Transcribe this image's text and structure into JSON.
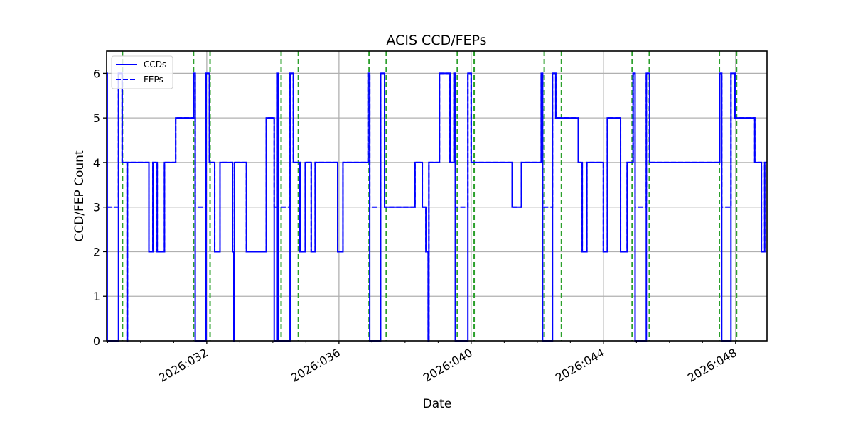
{
  "chart_data": {
    "type": "line",
    "title": "ACIS CCD/FEPs",
    "xlabel": "Date",
    "ylabel": "CCD/FEP Count",
    "xlim_doy": [
      28.97,
      48.95
    ],
    "ylim": [
      0,
      6.5
    ],
    "grid": true,
    "legend_position": "upper left",
    "x_ticks": [
      {
        "doy": 32,
        "label": "2026:032"
      },
      {
        "doy": 36,
        "label": "2026:036"
      },
      {
        "doy": 40,
        "label": "2026:040"
      },
      {
        "doy": 44,
        "label": "2026:044"
      },
      {
        "doy": 48,
        "label": "2026:048"
      }
    ],
    "x_minor_ticks_doy": [
      29,
      30,
      31,
      33,
      34,
      35,
      37,
      38,
      39,
      41,
      42,
      43,
      45,
      46,
      47
    ],
    "y_ticks": [
      0,
      1,
      2,
      3,
      4,
      5,
      6
    ],
    "colors": {
      "ccds": "#0000ff",
      "feps": "#0000ff",
      "markers": "#2ca02c",
      "grid": "#b0b0b0"
    },
    "legend": [
      {
        "label": "CCDs",
        "style": "solid"
      },
      {
        "label": "FEPs",
        "style": "dashed"
      }
    ],
    "series": [
      {
        "name": "CCDs",
        "style": "step",
        "points": [
          [
            28.97,
            6
          ],
          [
            28.99,
            0
          ],
          [
            29.33,
            6
          ],
          [
            29.44,
            4
          ],
          [
            29.59,
            0
          ],
          [
            29.6,
            4
          ],
          [
            30.25,
            2
          ],
          [
            30.37,
            4
          ],
          [
            30.5,
            2
          ],
          [
            30.72,
            4
          ],
          [
            31.06,
            5
          ],
          [
            31.6,
            6
          ],
          [
            31.65,
            0
          ],
          [
            31.98,
            6
          ],
          [
            32.08,
            4
          ],
          [
            32.24,
            2
          ],
          [
            32.4,
            4
          ],
          [
            32.78,
            2
          ],
          [
            32.82,
            0
          ],
          [
            32.84,
            4
          ],
          [
            33.2,
            2
          ],
          [
            33.8,
            5
          ],
          [
            34.04,
            0
          ],
          [
            34.12,
            6
          ],
          [
            34.16,
            0
          ],
          [
            34.52,
            6
          ],
          [
            34.62,
            4
          ],
          [
            34.82,
            2
          ],
          [
            34.98,
            4
          ],
          [
            35.16,
            2
          ],
          [
            35.28,
            4
          ],
          [
            35.96,
            2
          ],
          [
            36.12,
            4
          ],
          [
            36.88,
            6
          ],
          [
            36.93,
            0
          ],
          [
            37.26,
            6
          ],
          [
            37.38,
            3
          ],
          [
            38.3,
            4
          ],
          [
            38.52,
            3
          ],
          [
            38.63,
            2
          ],
          [
            38.7,
            0
          ],
          [
            38.72,
            4
          ],
          [
            39.04,
            6
          ],
          [
            39.36,
            4
          ],
          [
            39.48,
            6
          ],
          [
            39.52,
            0
          ],
          [
            39.9,
            6
          ],
          [
            40.0,
            4
          ],
          [
            41.24,
            3
          ],
          [
            41.52,
            4
          ],
          [
            42.12,
            6
          ],
          [
            42.16,
            0
          ],
          [
            42.46,
            6
          ],
          [
            42.56,
            5
          ],
          [
            43.24,
            4
          ],
          [
            43.36,
            2
          ],
          [
            43.5,
            4
          ],
          [
            44.0,
            2
          ],
          [
            44.12,
            5
          ],
          [
            44.52,
            2
          ],
          [
            44.72,
            4
          ],
          [
            44.9,
            6
          ],
          [
            44.96,
            0
          ],
          [
            45.3,
            6
          ],
          [
            45.4,
            4
          ],
          [
            47.52,
            6
          ],
          [
            47.58,
            0
          ],
          [
            47.86,
            6
          ],
          [
            47.98,
            5
          ],
          [
            48.58,
            4
          ],
          [
            48.78,
            2
          ],
          [
            48.88,
            4
          ],
          [
            48.95,
            4
          ]
        ]
      },
      {
        "name": "FEPs",
        "style": "step-dashed",
        "points": [
          [
            28.97,
            3
          ],
          [
            29.25,
            3
          ],
          [
            29.33,
            6
          ],
          [
            29.44,
            4
          ],
          [
            29.59,
            0
          ],
          [
            29.6,
            4
          ],
          [
            30.25,
            2
          ],
          [
            30.37,
            4
          ],
          [
            30.5,
            2
          ],
          [
            30.72,
            4
          ],
          [
            31.06,
            5
          ],
          [
            31.6,
            6
          ],
          [
            31.65,
            3
          ],
          [
            31.88,
            3
          ],
          [
            31.98,
            6
          ],
          [
            32.08,
            4
          ],
          [
            32.24,
            2
          ],
          [
            32.4,
            4
          ],
          [
            32.78,
            2
          ],
          [
            32.82,
            0
          ],
          [
            32.84,
            4
          ],
          [
            33.2,
            2
          ],
          [
            33.8,
            5
          ],
          [
            34.04,
            3
          ],
          [
            34.12,
            6
          ],
          [
            34.16,
            3
          ],
          [
            34.52,
            6
          ],
          [
            34.62,
            4
          ],
          [
            34.82,
            2
          ],
          [
            34.98,
            4
          ],
          [
            35.16,
            2
          ],
          [
            35.28,
            4
          ],
          [
            35.96,
            2
          ],
          [
            36.12,
            4
          ],
          [
            36.88,
            6
          ],
          [
            36.93,
            3
          ],
          [
            37.26,
            6
          ],
          [
            37.38,
            3
          ],
          [
            38.3,
            4
          ],
          [
            38.52,
            3
          ],
          [
            38.63,
            2
          ],
          [
            38.7,
            0
          ],
          [
            38.72,
            4
          ],
          [
            39.04,
            6
          ],
          [
            39.36,
            4
          ],
          [
            39.48,
            6
          ],
          [
            39.52,
            3
          ],
          [
            39.9,
            6
          ],
          [
            40.0,
            4
          ],
          [
            41.24,
            3
          ],
          [
            41.52,
            4
          ],
          [
            42.12,
            6
          ],
          [
            42.16,
            3
          ],
          [
            42.46,
            6
          ],
          [
            42.56,
            5
          ],
          [
            43.24,
            4
          ],
          [
            43.36,
            2
          ],
          [
            43.5,
            4
          ],
          [
            44.0,
            2
          ],
          [
            44.12,
            5
          ],
          [
            44.52,
            2
          ],
          [
            44.72,
            4
          ],
          [
            44.9,
            6
          ],
          [
            44.96,
            3
          ],
          [
            45.3,
            6
          ],
          [
            45.4,
            4
          ],
          [
            47.52,
            6
          ],
          [
            47.58,
            3
          ],
          [
            47.86,
            6
          ],
          [
            47.98,
            5
          ],
          [
            48.58,
            4
          ],
          [
            48.78,
            2
          ],
          [
            48.88,
            4
          ],
          [
            48.95,
            4
          ]
        ]
      }
    ],
    "vertical_markers_doy": [
      29.45,
      31.6,
      32.1,
      34.25,
      34.77,
      36.91,
      37.43,
      39.58,
      40.09,
      42.21,
      42.73,
      44.87,
      45.39,
      47.51,
      48.03
    ]
  }
}
